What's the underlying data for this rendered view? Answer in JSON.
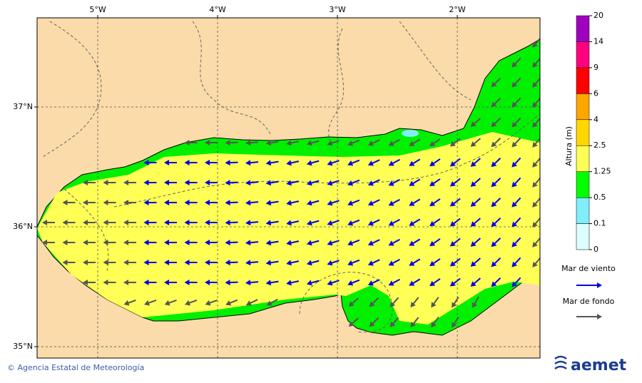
{
  "map": {
    "xlim": [
      -5.506,
      -1.31
    ],
    "ylim": [
      34.905,
      37.744
    ],
    "xticks": [
      {
        "value": -5,
        "label": "5°W"
      },
      {
        "value": -4,
        "label": "4°W"
      },
      {
        "value": -3,
        "label": "3°W"
      },
      {
        "value": -2,
        "label": "2°W"
      }
    ],
    "yticks": [
      {
        "value": 37,
        "label": "37°N"
      },
      {
        "value": 36,
        "label": "36°N"
      },
      {
        "value": 35,
        "label": "35°N"
      }
    ]
  },
  "colorbar": {
    "label": "Altura (m)",
    "ticks": [
      0,
      0.1,
      0.5,
      1.25,
      2.5,
      4,
      6,
      9,
      14,
      20
    ],
    "colors": [
      "#dcfefe",
      "#80eefc",
      "#00ff00",
      "#ffff55",
      "#ffd700",
      "#ffa500",
      "#ff0000",
      "#ff0080",
      "#a000c0"
    ]
  },
  "legend": [
    {
      "name": "Mar de viento",
      "color": "#0000ee"
    },
    {
      "name": "Mar de fondo",
      "color": "#555555"
    }
  ],
  "footer": "© Agencia Estatal de Meteorología",
  "logo": "aemet"
}
